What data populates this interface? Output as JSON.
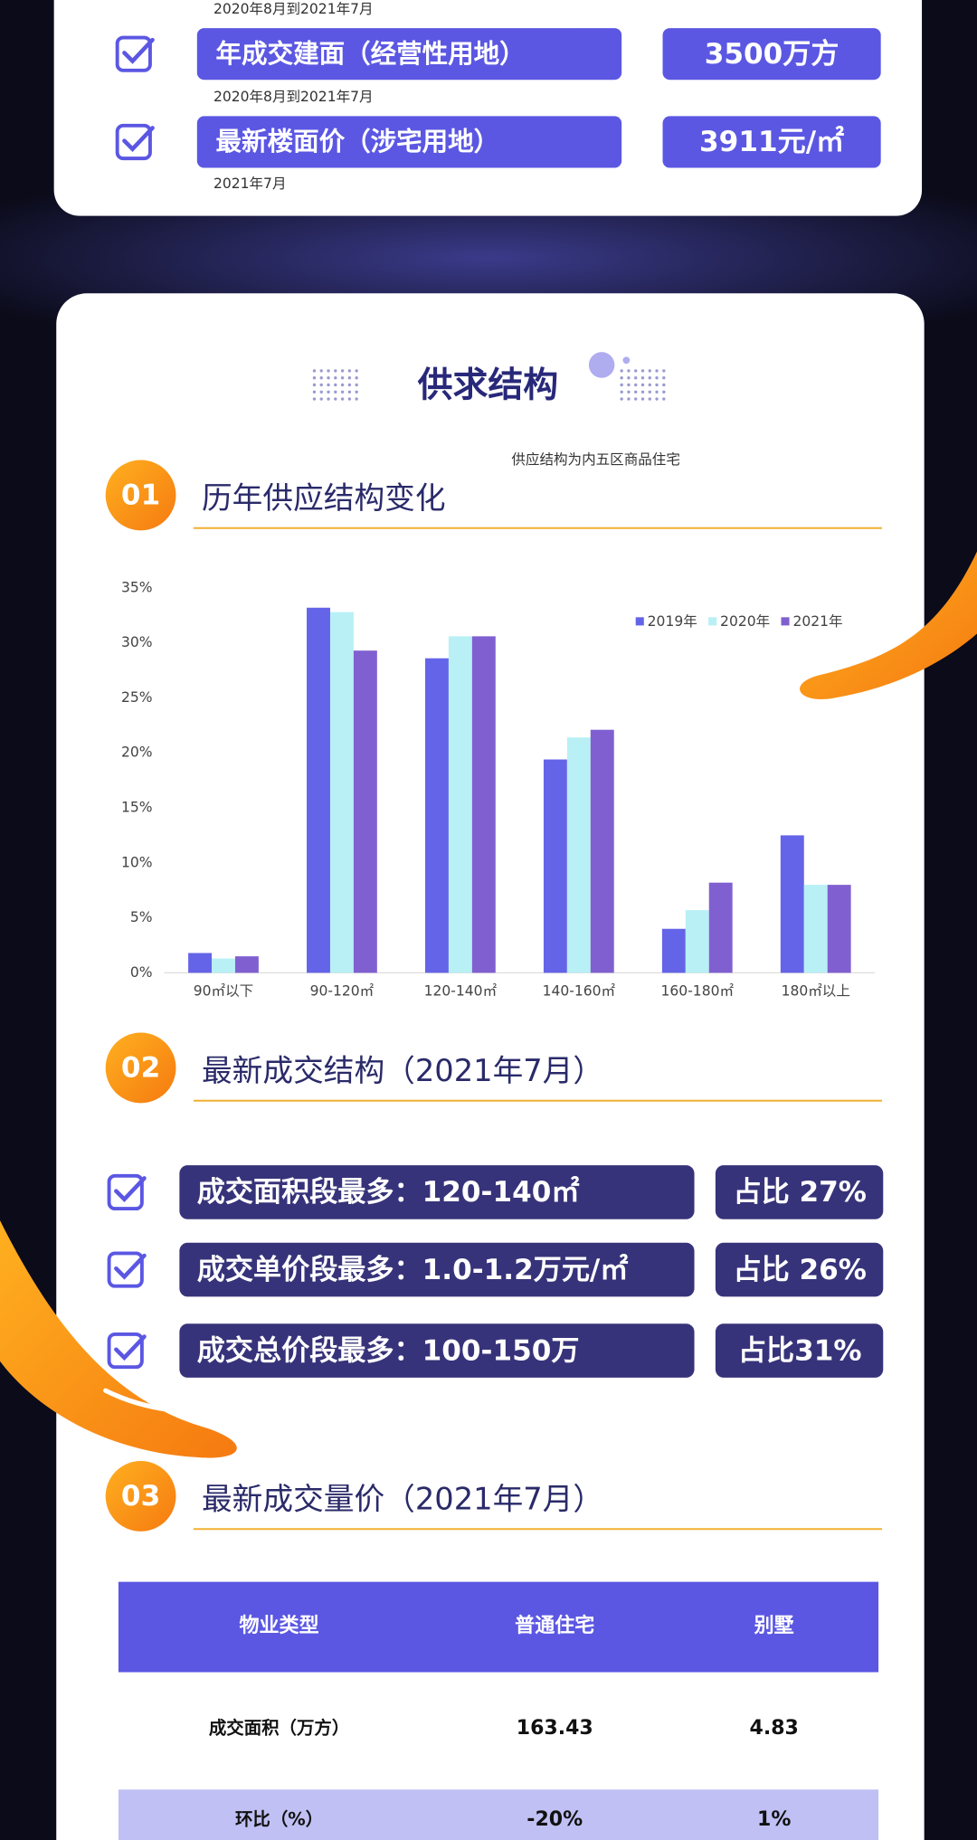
{
  "top_card": {
    "notes": [
      "2020年8月到2021年7月",
      "2020年8月到2021年7月",
      "2021年7月"
    ],
    "items": [
      {
        "label": "年成交建面（经营性用地）",
        "value": "3500万方"
      },
      {
        "label": "最新楼面价（涉宅用地）",
        "value": "3911元/㎡"
      }
    ]
  },
  "main_card": {
    "title": "供求结构",
    "note": "供应结构为内五区商品住宅",
    "sections": [
      {
        "number": "01",
        "title": "历年供应结构变化"
      },
      {
        "number": "02",
        "title": "最新成交结构（2021年7月）"
      },
      {
        "number": "03",
        "title": "最新成交量价（2021年7月）"
      }
    ],
    "highlights": [
      {
        "text": "成交面积段最多：120-140㎡",
        "share": "占比 27%"
      },
      {
        "text": "成交单价段最多：1.0-1.2万元/㎡",
        "share": "占比 26%"
      },
      {
        "text": "成交总价段最多：100-150万",
        "share": "占比31%"
      }
    ],
    "table": {
      "header": [
        "物业类型",
        "普通住宅",
        "别墅"
      ],
      "rows": [
        [
          "成交面积（万方）",
          "163.43",
          "4.83"
        ],
        [
          "环比（%）",
          "-20%",
          "1%"
        ]
      ]
    }
  },
  "chart_data": {
    "type": "bar",
    "categories": [
      "90㎡以下",
      "90-120㎡",
      "120-140㎡",
      "140-160㎡",
      "160-180㎡",
      "180㎡以上"
    ],
    "series": [
      {
        "name": "2019年",
        "color": "#6464e8",
        "values": [
          1.8,
          33.2,
          28.6,
          19.4,
          4.0,
          12.5
        ]
      },
      {
        "name": "2020年",
        "color": "#b8f0f5",
        "values": [
          1.3,
          32.8,
          30.6,
          21.4,
          5.7,
          8.0
        ]
      },
      {
        "name": "2021年",
        "color": "#8060d0",
        "values": [
          1.5,
          29.3,
          30.6,
          22.1,
          8.2,
          8.0
        ]
      }
    ],
    "ylim": [
      0,
      35
    ],
    "yticks": [
      {
        "value": 0,
        "label": "0%"
      },
      {
        "value": 5,
        "label": "5%"
      },
      {
        "value": 10,
        "label": "10%"
      },
      {
        "value": 15,
        "label": "15%"
      },
      {
        "value": 20,
        "label": "20%"
      },
      {
        "value": 25,
        "label": "25%"
      },
      {
        "value": 30,
        "label": "30%"
      },
      {
        "value": 35,
        "label": "35%"
      }
    ],
    "legend": "top-right",
    "grid": false
  }
}
